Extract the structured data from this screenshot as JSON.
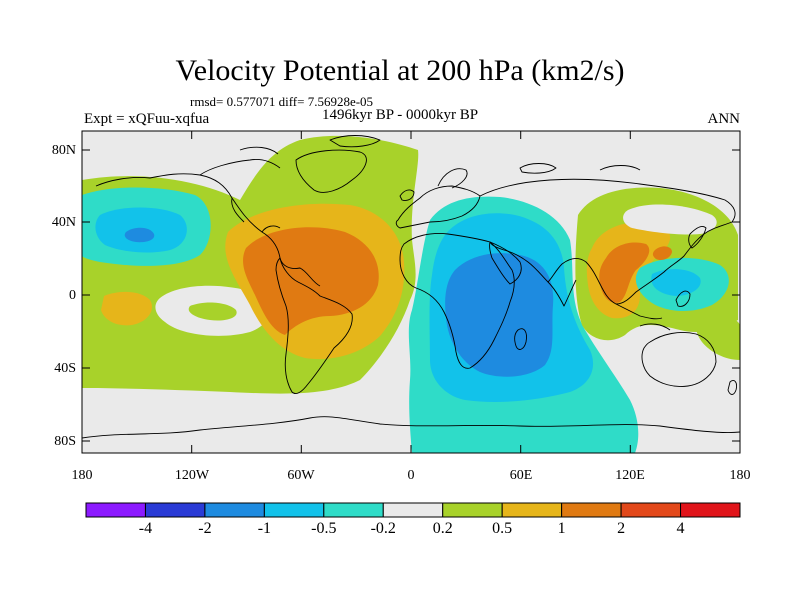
{
  "title": "Velocity Potential at 200 hPa (km2/s)",
  "stats": "rmsd= 0.577071 diff= 7.56928e-05",
  "period": "1496kyr BP - 0000kyr BP",
  "experiment": "Expt = xQFuu-xqfua",
  "season": "ANN",
  "lat_labels": [
    "80N",
    "40N",
    "0",
    "40S",
    "80S"
  ],
  "lon_labels": [
    "180",
    "120W",
    "60W",
    "0",
    "60E",
    "120E",
    "180"
  ],
  "colorbar": {
    "labels": [
      "-4",
      "-2",
      "-1",
      "-0.5",
      "-0.2",
      "0.2",
      "0.5",
      "1",
      "2",
      "4"
    ],
    "colors": [
      "#8c1aff",
      "#2a3bd6",
      "#1e8be0",
      "#12c2ea",
      "#2fdcc8",
      "#eaeaea",
      "#a8d22a",
      "#e6b51a",
      "#e07a12",
      "#e2481a",
      "#e0141a"
    ]
  },
  "fill_colors": {
    "background": "#eaeaea",
    "turquoise": "#2fdcc8",
    "cyan": "#12c2ea",
    "blue": "#1e8be0",
    "green": "#a8d22a",
    "yellow": "#e6b51a",
    "orange": "#e07a12"
  }
}
